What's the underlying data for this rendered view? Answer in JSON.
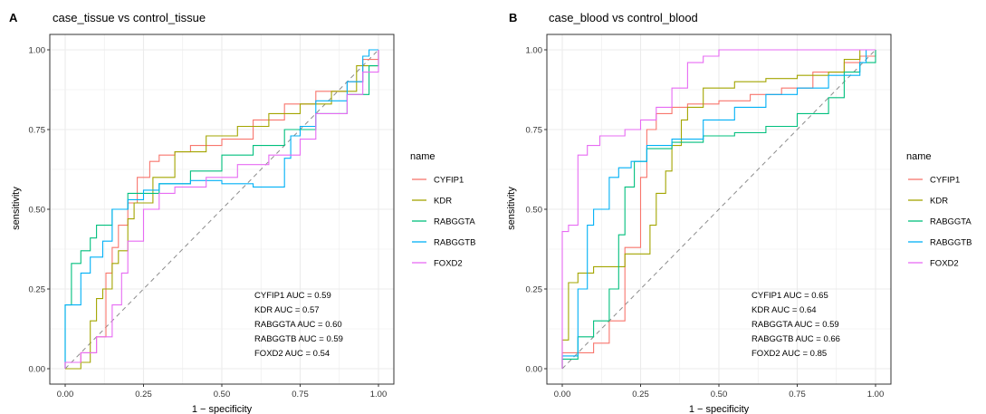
{
  "colors": {
    "CYFIP1": "#F8766D",
    "KDR": "#A3A500",
    "RABGGTA": "#00BF7D",
    "RABGGTB": "#00B0F6",
    "FOXD2": "#E76BF3",
    "grid": "#ebebeb",
    "border": "#333333",
    "diagonal": "#8c8c8c"
  },
  "chart_data": [
    {
      "type": "line",
      "panel_label": "A",
      "title": "case_tissue vs control_tissue",
      "xlabel": "1 − specificity",
      "ylabel": "sensitivity",
      "xlim": [
        0,
        1
      ],
      "ylim": [
        0,
        1
      ],
      "x_ticks": [
        "0.00",
        "0.25",
        "0.50",
        "0.75",
        "1.00"
      ],
      "y_ticks": [
        "0.00",
        "0.25",
        "0.50",
        "0.75",
        "1.00"
      ],
      "grid": true,
      "reference_line": "diagonal",
      "legend": {
        "title": "name",
        "position": "right",
        "entries": [
          "CYFIP1",
          "KDR",
          "RABGGTA",
          "RABGGTB",
          "FOXD2"
        ]
      },
      "annotations": [
        "CYFIP1 AUC = 0.59",
        "KDR AUC = 0.57",
        "RABGGTA AUC = 0.60",
        "RABGGTB AUC = 0.59",
        "FOXD2 AUC = 0.54"
      ],
      "series": [
        {
          "name": "CYFIP1",
          "points": [
            [
              0,
              0
            ],
            [
              0,
              0.01
            ],
            [
              0.05,
              0.02
            ],
            [
              0.1,
              0.05
            ],
            [
              0.13,
              0.1
            ],
            [
              0.15,
              0.3
            ],
            [
              0.17,
              0.38
            ],
            [
              0.2,
              0.45
            ],
            [
              0.23,
              0.52
            ],
            [
              0.27,
              0.6
            ],
            [
              0.3,
              0.65
            ],
            [
              0.35,
              0.67
            ],
            [
              0.4,
              0.68
            ],
            [
              0.5,
              0.7
            ],
            [
              0.6,
              0.72
            ],
            [
              0.7,
              0.78
            ],
            [
              0.8,
              0.83
            ],
            [
              0.9,
              0.87
            ],
            [
              0.95,
              0.9
            ],
            [
              1,
              0.97
            ],
            [
              1,
              1
            ]
          ]
        },
        {
          "name": "KDR",
          "points": [
            [
              0,
              0
            ],
            [
              0.05,
              0
            ],
            [
              0.08,
              0.02
            ],
            [
              0.1,
              0.15
            ],
            [
              0.12,
              0.22
            ],
            [
              0.15,
              0.25
            ],
            [
              0.17,
              0.33
            ],
            [
              0.2,
              0.37
            ],
            [
              0.22,
              0.47
            ],
            [
              0.28,
              0.52
            ],
            [
              0.35,
              0.6
            ],
            [
              0.45,
              0.68
            ],
            [
              0.55,
              0.73
            ],
            [
              0.65,
              0.76
            ],
            [
              0.75,
              0.8
            ],
            [
              0.85,
              0.83
            ],
            [
              0.93,
              0.87
            ],
            [
              1,
              0.95
            ],
            [
              1,
              1
            ]
          ]
        },
        {
          "name": "RABGGTA",
          "points": [
            [
              0,
              0
            ],
            [
              0,
              0.13
            ],
            [
              0.02,
              0.2
            ],
            [
              0.05,
              0.33
            ],
            [
              0.08,
              0.37
            ],
            [
              0.1,
              0.41
            ],
            [
              0.15,
              0.45
            ],
            [
              0.2,
              0.5
            ],
            [
              0.3,
              0.55
            ],
            [
              0.4,
              0.58
            ],
            [
              0.5,
              0.62
            ],
            [
              0.6,
              0.67
            ],
            [
              0.7,
              0.7
            ],
            [
              0.8,
              0.75
            ],
            [
              0.9,
              0.8
            ],
            [
              0.97,
              0.86
            ],
            [
              1,
              0.95
            ],
            [
              1,
              1
            ]
          ]
        },
        {
          "name": "RABGGTB",
          "points": [
            [
              0,
              0
            ],
            [
              0,
              0.15
            ],
            [
              0.05,
              0.2
            ],
            [
              0.08,
              0.3
            ],
            [
              0.12,
              0.35
            ],
            [
              0.15,
              0.4
            ],
            [
              0.2,
              0.5
            ],
            [
              0.25,
              0.53
            ],
            [
              0.3,
              0.56
            ],
            [
              0.4,
              0.58
            ],
            [
              0.5,
              0.59
            ],
            [
              0.6,
              0.58
            ],
            [
              0.7,
              0.57
            ],
            [
              0.72,
              0.66
            ],
            [
              0.75,
              0.73
            ],
            [
              0.8,
              0.76
            ],
            [
              0.9,
              0.84
            ],
            [
              0.95,
              0.9
            ],
            [
              0.97,
              0.98
            ],
            [
              1,
              1
            ]
          ]
        },
        {
          "name": "FOXD2",
          "points": [
            [
              0,
              0
            ],
            [
              0,
              0.01
            ],
            [
              0.05,
              0.02
            ],
            [
              0.1,
              0.05
            ],
            [
              0.15,
              0.1
            ],
            [
              0.18,
              0.2
            ],
            [
              0.2,
              0.3
            ],
            [
              0.25,
              0.4
            ],
            [
              0.3,
              0.5
            ],
            [
              0.35,
              0.55
            ],
            [
              0.45,
              0.57
            ],
            [
              0.55,
              0.6
            ],
            [
              0.65,
              0.64
            ],
            [
              0.75,
              0.67
            ],
            [
              0.8,
              0.72
            ],
            [
              0.9,
              0.8
            ],
            [
              0.95,
              0.86
            ],
            [
              1,
              0.93
            ],
            [
              1,
              1
            ]
          ]
        }
      ]
    },
    {
      "type": "line",
      "panel_label": "B",
      "title": "case_blood vs control_blood",
      "xlabel": "1 − specificity",
      "ylabel": "sensitivity",
      "xlim": [
        0,
        1
      ],
      "ylim": [
        0,
        1
      ],
      "x_ticks": [
        "0.00",
        "0.25",
        "0.50",
        "0.75",
        "1.00"
      ],
      "y_ticks": [
        "0.00",
        "0.25",
        "0.50",
        "0.75",
        "1.00"
      ],
      "grid": true,
      "reference_line": "diagonal",
      "legend": {
        "title": "name",
        "position": "right",
        "entries": [
          "CYFIP1",
          "KDR",
          "RABGGTA",
          "RABGGTB",
          "FOXD2"
        ]
      },
      "annotations": [
        "CYFIP1 AUC = 0.65",
        "KDR AUC = 0.64",
        "RABGGTA AUC = 0.59",
        "RABGGTB AUC = 0.66",
        "FOXD2 AUC = 0.85"
      ],
      "series": [
        {
          "name": "CYFIP1",
          "points": [
            [
              0,
              0
            ],
            [
              0,
              0.02
            ],
            [
              0.1,
              0.05
            ],
            [
              0.15,
              0.08
            ],
            [
              0.2,
              0.15
            ],
            [
              0.25,
              0.38
            ],
            [
              0.27,
              0.6
            ],
            [
              0.3,
              0.75
            ],
            [
              0.35,
              0.8
            ],
            [
              0.4,
              0.82
            ],
            [
              0.5,
              0.83
            ],
            [
              0.6,
              0.84
            ],
            [
              0.7,
              0.86
            ],
            [
              0.8,
              0.88
            ],
            [
              0.9,
              0.93
            ],
            [
              0.95,
              0.96
            ],
            [
              1,
              0.98
            ],
            [
              1,
              1
            ]
          ]
        },
        {
          "name": "KDR",
          "points": [
            [
              0,
              0
            ],
            [
              0,
              0.07
            ],
            [
              0.02,
              0.09
            ],
            [
              0.05,
              0.27
            ],
            [
              0.1,
              0.3
            ],
            [
              0.2,
              0.32
            ],
            [
              0.28,
              0.36
            ],
            [
              0.3,
              0.45
            ],
            [
              0.33,
              0.55
            ],
            [
              0.35,
              0.62
            ],
            [
              0.38,
              0.7
            ],
            [
              0.4,
              0.78
            ],
            [
              0.45,
              0.82
            ],
            [
              0.55,
              0.88
            ],
            [
              0.65,
              0.9
            ],
            [
              0.75,
              0.91
            ],
            [
              0.85,
              0.92
            ],
            [
              0.9,
              0.93
            ],
            [
              0.95,
              0.97
            ],
            [
              1,
              1
            ]
          ]
        },
        {
          "name": "RABGGTA",
          "points": [
            [
              0,
              0
            ],
            [
              0,
              0.02
            ],
            [
              0.05,
              0.03
            ],
            [
              0.1,
              0.1
            ],
            [
              0.15,
              0.15
            ],
            [
              0.18,
              0.25
            ],
            [
              0.2,
              0.42
            ],
            [
              0.23,
              0.57
            ],
            [
              0.27,
              0.65
            ],
            [
              0.35,
              0.69
            ],
            [
              0.45,
              0.71
            ],
            [
              0.55,
              0.73
            ],
            [
              0.65,
              0.74
            ],
            [
              0.75,
              0.76
            ],
            [
              0.85,
              0.8
            ],
            [
              0.9,
              0.85
            ],
            [
              0.95,
              0.93
            ],
            [
              1,
              0.96
            ],
            [
              1,
              1
            ]
          ]
        },
        {
          "name": "RABGGTB",
          "points": [
            [
              0,
              0
            ],
            [
              0,
              0.02
            ],
            [
              0.05,
              0.04
            ],
            [
              0.08,
              0.25
            ],
            [
              0.1,
              0.45
            ],
            [
              0.15,
              0.5
            ],
            [
              0.18,
              0.6
            ],
            [
              0.22,
              0.63
            ],
            [
              0.27,
              0.65
            ],
            [
              0.35,
              0.7
            ],
            [
              0.45,
              0.72
            ],
            [
              0.55,
              0.78
            ],
            [
              0.65,
              0.82
            ],
            [
              0.75,
              0.86
            ],
            [
              0.85,
              0.88
            ],
            [
              0.95,
              0.92
            ],
            [
              0.97,
              0.96
            ],
            [
              1,
              1
            ]
          ]
        },
        {
          "name": "FOXD2",
          "points": [
            [
              0,
              0
            ],
            [
              0,
              0.41
            ],
            [
              0.02,
              0.43
            ],
            [
              0.05,
              0.45
            ],
            [
              0.08,
              0.67
            ],
            [
              0.12,
              0.7
            ],
            [
              0.2,
              0.73
            ],
            [
              0.25,
              0.75
            ],
            [
              0.3,
              0.78
            ],
            [
              0.35,
              0.82
            ],
            [
              0.4,
              0.88
            ],
            [
              0.45,
              0.96
            ],
            [
              0.5,
              0.98
            ],
            [
              0.6,
              1
            ],
            [
              0.8,
              1
            ],
            [
              1,
              1
            ]
          ]
        }
      ]
    }
  ]
}
